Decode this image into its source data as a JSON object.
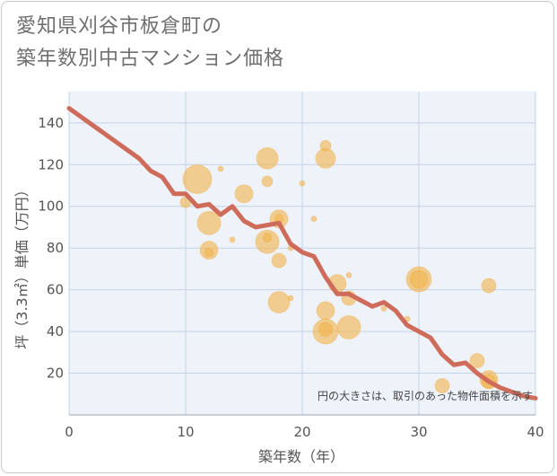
{
  "page": {
    "title_line1": "愛知県刈谷市板倉町の",
    "title_line2": "築年数別中古マンション価格"
  },
  "chart_data": {
    "type": "scatter",
    "title": "愛知県刈谷市板倉町の築年数別中古マンション価格",
    "xlabel": "築年数（年）",
    "ylabel": "坪（3.3㎡）単価（万円）",
    "xlim": [
      0,
      40
    ],
    "ylim": [
      0,
      155
    ],
    "xticks": [
      "0",
      "10",
      "20",
      "30",
      "40"
    ],
    "yticks": [
      "20",
      "40",
      "60",
      "80",
      "100",
      "120",
      "140"
    ],
    "grid": true,
    "note": "円の大きさは、取引のあった物件面積を示す",
    "colors": {
      "bubble": "#f2b24a",
      "line": "#cf6b5a",
      "grid": "#c5d3e6",
      "plot_bg": "#eef2f9"
    },
    "series": [
      {
        "kind": "bubbles",
        "points": [
          {
            "x": 10,
            "y": 102,
            "size": 6
          },
          {
            "x": 11,
            "y": 113,
            "size": 16
          },
          {
            "x": 12,
            "y": 92,
            "size": 13
          },
          {
            "x": 12,
            "y": 79,
            "size": 10
          },
          {
            "x": 12,
            "y": 78,
            "size": 5
          },
          {
            "x": 13,
            "y": 118,
            "size": 3
          },
          {
            "x": 14,
            "y": 84,
            "size": 3
          },
          {
            "x": 15,
            "y": 106,
            "size": 10
          },
          {
            "x": 17,
            "y": 123,
            "size": 12
          },
          {
            "x": 17,
            "y": 112,
            "size": 6
          },
          {
            "x": 17,
            "y": 83,
            "size": 13
          },
          {
            "x": 17,
            "y": 85,
            "size": 5
          },
          {
            "x": 18,
            "y": 94,
            "size": 10
          },
          {
            "x": 18,
            "y": 94,
            "size": 5
          },
          {
            "x": 18,
            "y": 74,
            "size": 8
          },
          {
            "x": 18,
            "y": 54,
            "size": 12
          },
          {
            "x": 19,
            "y": 80,
            "size": 3
          },
          {
            "x": 19,
            "y": 56,
            "size": 3
          },
          {
            "x": 20,
            "y": 111,
            "size": 3
          },
          {
            "x": 21,
            "y": 94,
            "size": 3
          },
          {
            "x": 22,
            "y": 129,
            "size": 6
          },
          {
            "x": 22,
            "y": 123,
            "size": 11
          },
          {
            "x": 22,
            "y": 50,
            "size": 10
          },
          {
            "x": 22,
            "y": 40,
            "size": 14
          },
          {
            "x": 22,
            "y": 41,
            "size": 8
          },
          {
            "x": 23,
            "y": 63,
            "size": 10
          },
          {
            "x": 24,
            "y": 67,
            "size": 3
          },
          {
            "x": 24,
            "y": 56,
            "size": 8
          },
          {
            "x": 24,
            "y": 42,
            "size": 13
          },
          {
            "x": 27,
            "y": 51,
            "size": 3
          },
          {
            "x": 29,
            "y": 46,
            "size": 3
          },
          {
            "x": 30,
            "y": 65,
            "size": 14
          },
          {
            "x": 30,
            "y": 65,
            "size": 10
          },
          {
            "x": 32,
            "y": 14,
            "size": 8
          },
          {
            "x": 35,
            "y": 26,
            "size": 8
          },
          {
            "x": 36,
            "y": 62,
            "size": 8
          },
          {
            "x": 36,
            "y": 17,
            "size": 10
          },
          {
            "x": 36,
            "y": 16,
            "size": 8
          }
        ]
      },
      {
        "kind": "line",
        "x": [
          0,
          1,
          2,
          3,
          4,
          5,
          6,
          7,
          8,
          9,
          10,
          11,
          12,
          13,
          14,
          15,
          16,
          17,
          18,
          19,
          20,
          21,
          22,
          23,
          24,
          25,
          26,
          27,
          28,
          29,
          30,
          31,
          32,
          33,
          34,
          35,
          36,
          37,
          38,
          39,
          40
        ],
        "y": [
          147,
          143,
          139,
          135,
          131,
          127,
          123,
          117,
          114,
          106,
          106,
          100,
          101,
          96,
          100,
          93,
          90,
          91,
          92,
          82,
          78,
          76,
          66,
          58,
          58,
          55,
          52,
          54,
          50,
          43,
          40,
          37,
          29,
          24,
          25,
          20,
          16,
          13,
          11,
          9,
          8
        ]
      }
    ]
  }
}
